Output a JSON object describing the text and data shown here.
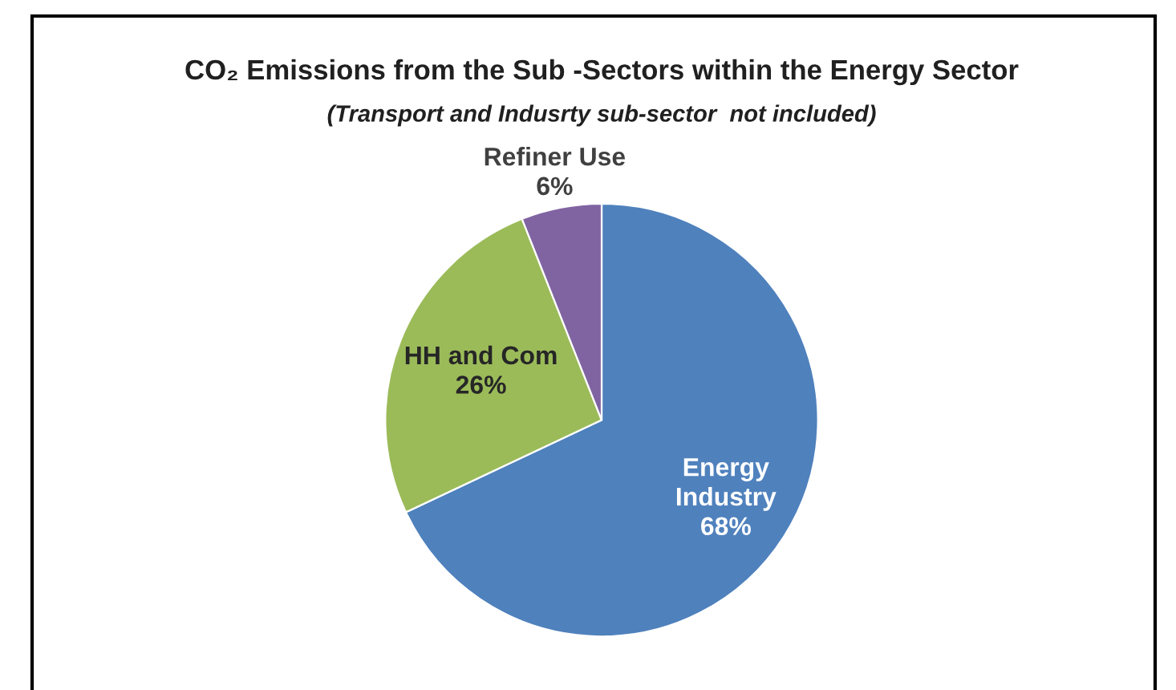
{
  "chart_data": {
    "type": "pie",
    "title": "CO₂ Emissions from the Sub -Sectors within the Energy Sector",
    "subtitle": "(Transport and Indusrty sub-sector  not included)",
    "categories": [
      "Energy\nIndustry",
      "HH and Com",
      "Refiner Use"
    ],
    "values": [
      68,
      26,
      6
    ],
    "value_labels": [
      "68%",
      "26%",
      "6%"
    ],
    "colors": [
      "#4f81bd",
      "#9bbb59",
      "#8064a2"
    ],
    "legend": false
  }
}
